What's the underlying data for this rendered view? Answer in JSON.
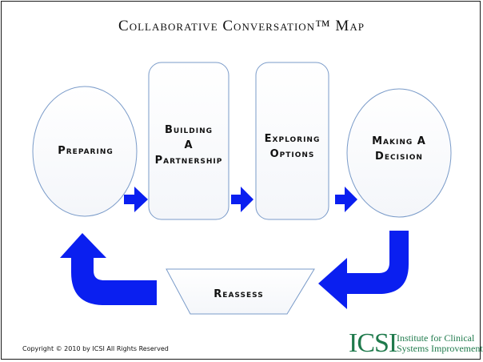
{
  "title": "Collaborative Conversation™ Map",
  "nodes": {
    "preparing": [
      "Preparing"
    ],
    "building": [
      "Building",
      "A",
      "Partnership"
    ],
    "exploring": [
      "Exploring",
      "Options"
    ],
    "deciding": [
      "Making A",
      "Decision"
    ],
    "reassess": [
      "Reassess"
    ]
  },
  "colors": {
    "arrow": "#0a1ff0",
    "node_stroke": "#7a9bc9"
  },
  "footer": {
    "copyright": "Copyright © 2010 by ICSI All Rights Reserved",
    "logo_mark": "ICSI",
    "logo_line1": "Institute for Clinical",
    "logo_line2": "Systems Improvement"
  }
}
